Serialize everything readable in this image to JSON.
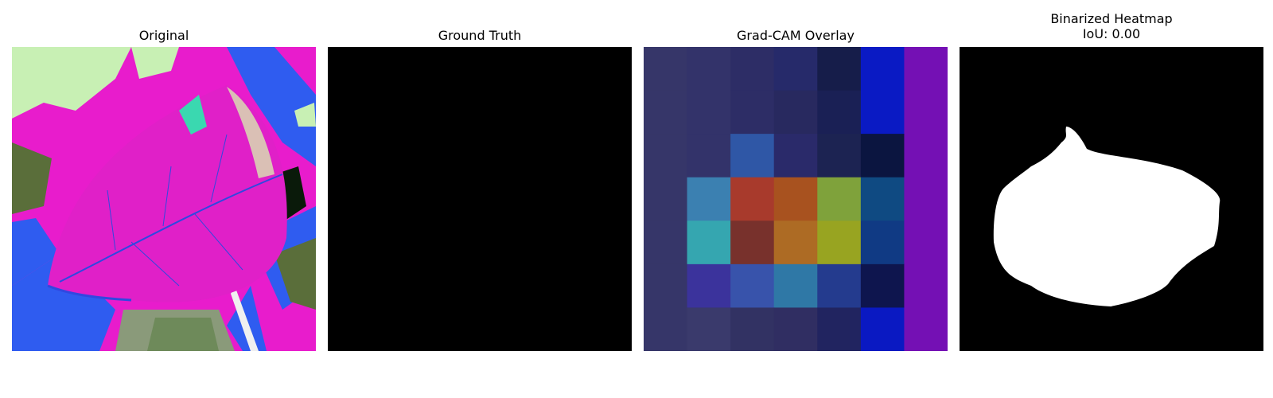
{
  "panels": [
    {
      "title": "Original"
    },
    {
      "title": "Ground Truth"
    },
    {
      "title": "Grad-CAM Overlay"
    },
    {
      "title": "Binarized Heatmap",
      "subtitle": "IoU: 0.00"
    }
  ],
  "gradcam": {
    "rows": 7,
    "cols": 7,
    "colors": [
      [
        "#363669",
        "#33336a",
        "#2d2d66",
        "#262a6a",
        "#161d4a",
        "#0a1ac4",
        "#7410b4"
      ],
      [
        "#363669",
        "#33336a",
        "#2d2d66",
        "#28295f",
        "#1a2055",
        "#0a1ac4",
        "#7410b4"
      ],
      [
        "#363669",
        "#33336a",
        "#2f57a6",
        "#2a2a6a",
        "#1c2352",
        "#0b1540",
        "#7410b4"
      ],
      [
        "#363669",
        "#3b80b1",
        "#a83a2c",
        "#a8521f",
        "#7fa23b",
        "#0f4a82",
        "#7410b4"
      ],
      [
        "#363669",
        "#35a6b0",
        "#78312c",
        "#ad6b24",
        "#98a421",
        "#103a84",
        "#7410b4"
      ],
      [
        "#363669",
        "#3b339c",
        "#3853ab",
        "#2f78a6",
        "#243b8e",
        "#0e154e",
        "#7410b4"
      ],
      [
        "#363669",
        "#3a3a6c",
        "#323263",
        "#302e62",
        "#212460",
        "#0a19c2",
        "#7410b4"
      ]
    ]
  },
  "colors": {
    "magenta": "#e81ccc",
    "blue": "#2f5cf0",
    "green": "#5a6e3a",
    "lightgreen": "#c8f0b4",
    "teal": "#3ad8b0",
    "black": "#000000",
    "white": "#ffffff"
  }
}
